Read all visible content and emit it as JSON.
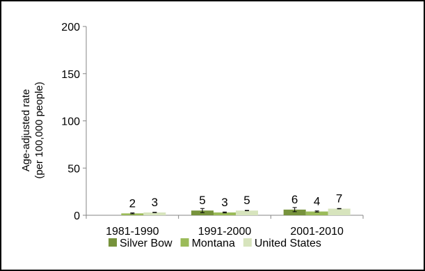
{
  "chart_data": {
    "type": "bar",
    "ylabel_lines": [
      "Age-adjusted  rate",
      "(per 100,000 people)"
    ],
    "xlabel": "",
    "ylim": [
      0,
      200
    ],
    "yticks": [
      0,
      50,
      100,
      150,
      200
    ],
    "categories": [
      "1981-1990",
      "1991-2000",
      "2001-2010"
    ],
    "series": [
      {
        "name": "Silver Bow",
        "color": "#77933c",
        "values": [
          null,
          5,
          6
        ],
        "labels": [
          "",
          "5",
          "6"
        ],
        "errors": [
          null,
          2.2,
          2.2
        ]
      },
      {
        "name": "Montana",
        "color": "#9bbb59",
        "values": [
          2,
          3,
          4
        ],
        "labels": [
          "2",
          "3",
          "4"
        ],
        "errors": [
          0.5,
          0.5,
          0.6
        ]
      },
      {
        "name": "United States",
        "color": "#d7e4bd",
        "values": [
          3,
          5,
          7
        ],
        "labels": [
          "3",
          "5",
          "7"
        ],
        "errors": [
          0.2,
          0.2,
          0.2
        ]
      }
    ],
    "grid": false,
    "legend_position": "bottom"
  }
}
